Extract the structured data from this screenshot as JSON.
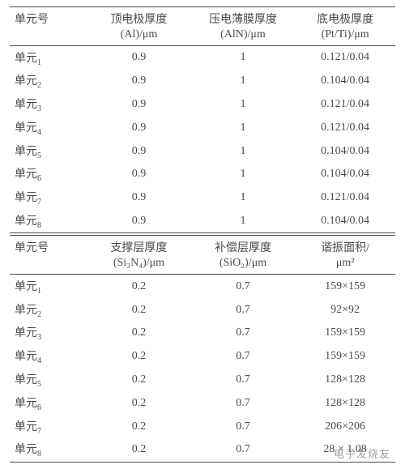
{
  "tableTop": {
    "header1": [
      "单元号",
      "顶电极厚度",
      "压电薄膜厚度",
      "底电极厚度"
    ],
    "header2": [
      "",
      "(Al)/μm",
      "(AlN)/μm",
      "(Pt/Ti)/μm"
    ],
    "rowPrefix": "单元",
    "rows": [
      {
        "idx": "1",
        "c1": "0.9",
        "c2": "1",
        "c3": "0.121/0.04"
      },
      {
        "idx": "2",
        "c1": "0.9",
        "c2": "1",
        "c3": "0.104/0.04"
      },
      {
        "idx": "3",
        "c1": "0.9",
        "c2": "1",
        "c3": "0.121/0.04"
      },
      {
        "idx": "4",
        "c1": "0.9",
        "c2": "1",
        "c3": "0.121/0.04"
      },
      {
        "idx": "5",
        "c1": "0.9",
        "c2": "1",
        "c3": "0.104/0.04"
      },
      {
        "idx": "6",
        "c1": "0.9",
        "c2": "1",
        "c3": "0.104/0.04"
      },
      {
        "idx": "7",
        "c1": "0.9",
        "c2": "1",
        "c3": "0.121/0.04"
      },
      {
        "idx": "8",
        "c1": "0.9",
        "c2": "1",
        "c3": "0.104/0.04"
      }
    ]
  },
  "tableBottom": {
    "header1": [
      "单元号",
      "支撑层厚度",
      "补偿层厚度",
      "谐振面积/"
    ],
    "header2": [
      "",
      "(Si₃N₄)/μm",
      "(SiO₂)/μm",
      "μm²"
    ],
    "rowPrefix": "单元",
    "rows": [
      {
        "idx": "1",
        "c1": "0.2",
        "c2": "0.7",
        "c3": "159×159"
      },
      {
        "idx": "2",
        "c1": "0.2",
        "c2": "0.7",
        "c3": "92×92"
      },
      {
        "idx": "3",
        "c1": "0.2",
        "c2": "0.7",
        "c3": "159×159"
      },
      {
        "idx": "4",
        "c1": "0.2",
        "c2": "0.7",
        "c3": "159×159"
      },
      {
        "idx": "5",
        "c1": "0.2",
        "c2": "0.7",
        "c3": "128×128"
      },
      {
        "idx": "6",
        "c1": "0.2",
        "c2": "0.7",
        "c3": "128×128"
      },
      {
        "idx": "7",
        "c1": "0.2",
        "c2": "0.7",
        "c3": "206×206"
      },
      {
        "idx": "8",
        "c1": "0.2",
        "c2": "0.7",
        "c3": "28 × 1.08"
      }
    ]
  },
  "colors": {
    "text": "#4a4a4a",
    "border": "#4a4a4a",
    "background": "#ffffff",
    "watermark": "#9f9f9f"
  },
  "watermark": "电子发烧友"
}
